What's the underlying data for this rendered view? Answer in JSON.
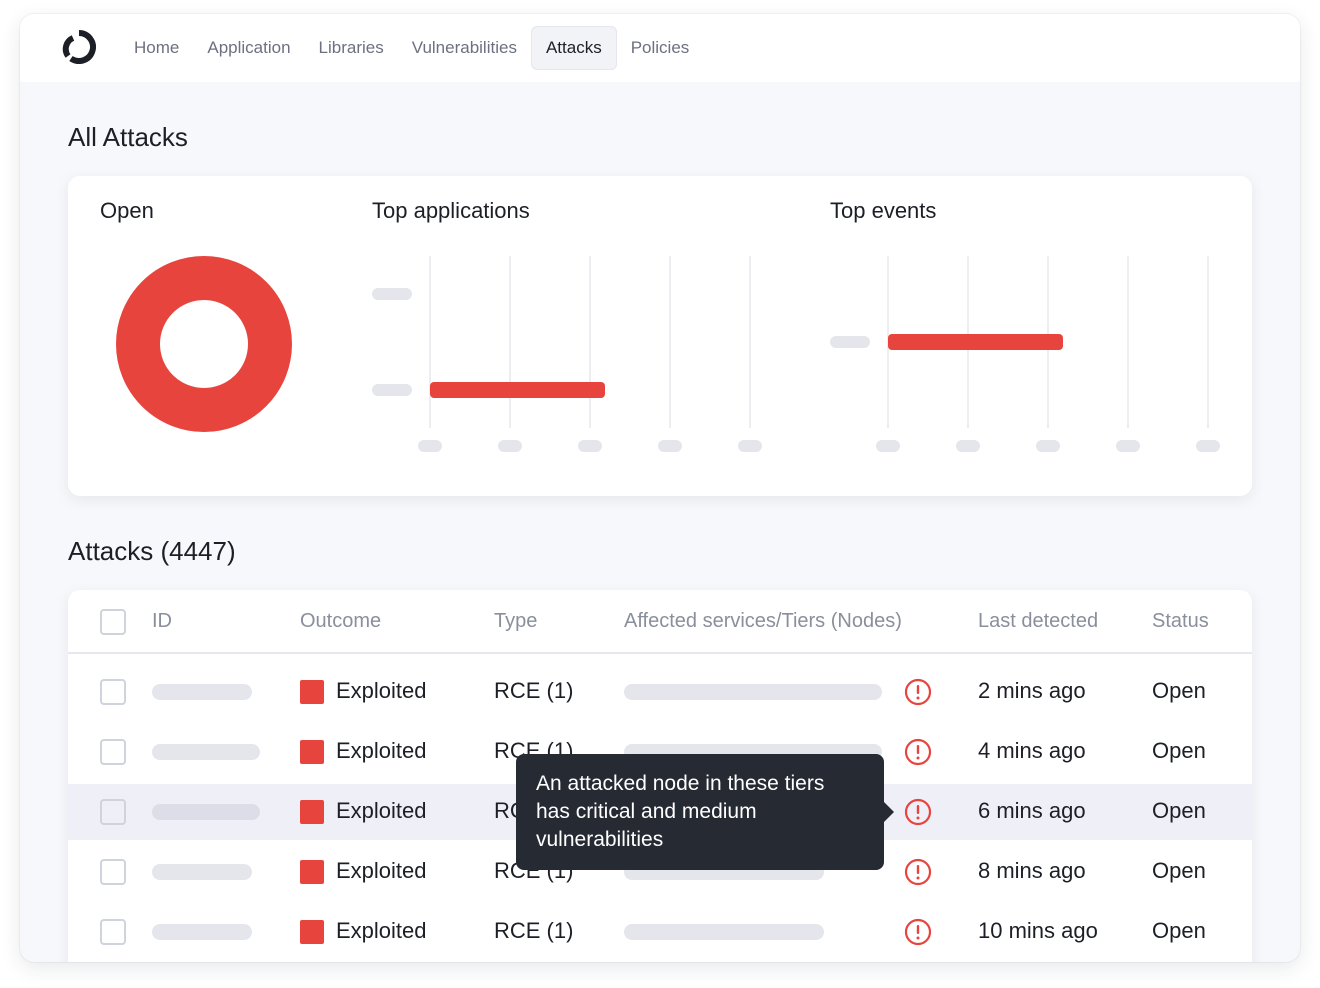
{
  "nav": {
    "items": [
      {
        "label": "Home"
      },
      {
        "label": "Application"
      },
      {
        "label": "Libraries"
      },
      {
        "label": "Vulnerabilities"
      },
      {
        "label": "Attacks",
        "active": true
      },
      {
        "label": "Policies"
      }
    ]
  },
  "page_title": "All Attacks",
  "summary": {
    "open_label": "Open",
    "top_applications_label": "Top applications",
    "top_events_label": "Top events"
  },
  "chart_data": [
    {
      "type": "pie",
      "variant": "donut",
      "title": "Open",
      "values": [
        1
      ],
      "colors": [
        "#e8443e"
      ]
    },
    {
      "type": "bar",
      "orientation": "horizontal",
      "title": "Top applications",
      "category_count": 2,
      "values": [
        null,
        0.56
      ],
      "value_scale": "fraction of axis",
      "colors": [
        "#e8443e"
      ],
      "grid": true
    },
    {
      "type": "bar",
      "orientation": "horizontal",
      "title": "Top events",
      "category_count": 1,
      "values": [
        0.56
      ],
      "value_scale": "fraction of axis",
      "colors": [
        "#e8443e"
      ],
      "grid": true
    }
  ],
  "attacks": {
    "title": "Attacks (4447)",
    "columns": {
      "id": "ID",
      "outcome": "Outcome",
      "type": "Type",
      "affected": "Affected services/Tiers (Nodes)",
      "last_detected": "Last detected",
      "status": "Status"
    },
    "rows": [
      {
        "outcome": "Exploited",
        "type": "RCE (1)",
        "last_detected": "2 mins ago",
        "status": "Open"
      },
      {
        "outcome": "Exploited",
        "type": "RCE (1)",
        "last_detected": "4 mins ago",
        "status": "Open"
      },
      {
        "outcome": "Exploited",
        "type": "RCE (1)",
        "last_detected": "6 mins ago",
        "status": "Open",
        "highlighted": true
      },
      {
        "outcome": "Exploited",
        "type": "RCE (1)",
        "last_detected": "8 mins ago",
        "status": "Open"
      },
      {
        "outcome": "Exploited",
        "type": "RCE (1)",
        "last_detected": "10 mins ago",
        "status": "Open"
      }
    ]
  },
  "tooltip": {
    "line1": "An attacked node in these tiers",
    "line2": "has critical and medium",
    "line3": "vulnerabilities"
  },
  "colors": {
    "accent_red": "#e8443e",
    "tooltip_bg": "#262a33",
    "highlight_row": "#efeff8"
  }
}
